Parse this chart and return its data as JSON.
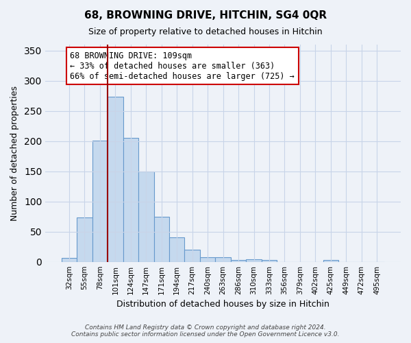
{
  "title": "68, BROWNING DRIVE, HITCHIN, SG4 0QR",
  "subtitle": "Size of property relative to detached houses in Hitchin",
  "xlabel": "Distribution of detached houses by size in Hitchin",
  "ylabel": "Number of detached properties",
  "bar_labels": [
    "32sqm",
    "55sqm",
    "78sqm",
    "101sqm",
    "124sqm",
    "147sqm",
    "171sqm",
    "194sqm",
    "217sqm",
    "240sqm",
    "263sqm",
    "286sqm",
    "310sqm",
    "333sqm",
    "356sqm",
    "379sqm",
    "402sqm",
    "425sqm",
    "449sqm",
    "472sqm",
    "495sqm"
  ],
  "bar_heights": [
    7,
    73,
    201,
    274,
    205,
    150,
    75,
    40,
    20,
    8,
    8,
    3,
    4,
    3,
    0,
    0,
    0,
    3,
    0,
    0,
    0
  ],
  "bar_color": "#c5d9ee",
  "bar_edge_color": "#6699cc",
  "vline_x_index": 3,
  "vline_color": "#990000",
  "ylim": [
    0,
    360
  ],
  "yticks": [
    0,
    50,
    100,
    150,
    200,
    250,
    300,
    350
  ],
  "annotation_text": "68 BROWNING DRIVE: 109sqm\n← 33% of detached houses are smaller (363)\n66% of semi-detached houses are larger (725) →",
  "annotation_box_color": "#ffffff",
  "annotation_box_edge_color": "#cc0000",
  "footer_line1": "Contains HM Land Registry data © Crown copyright and database right 2024.",
  "footer_line2": "Contains public sector information licensed under the Open Government Licence v3.0.",
  "background_color": "#eef2f8",
  "grid_color": "#c8d4e8",
  "title_fontsize": 11,
  "subtitle_fontsize": 9
}
